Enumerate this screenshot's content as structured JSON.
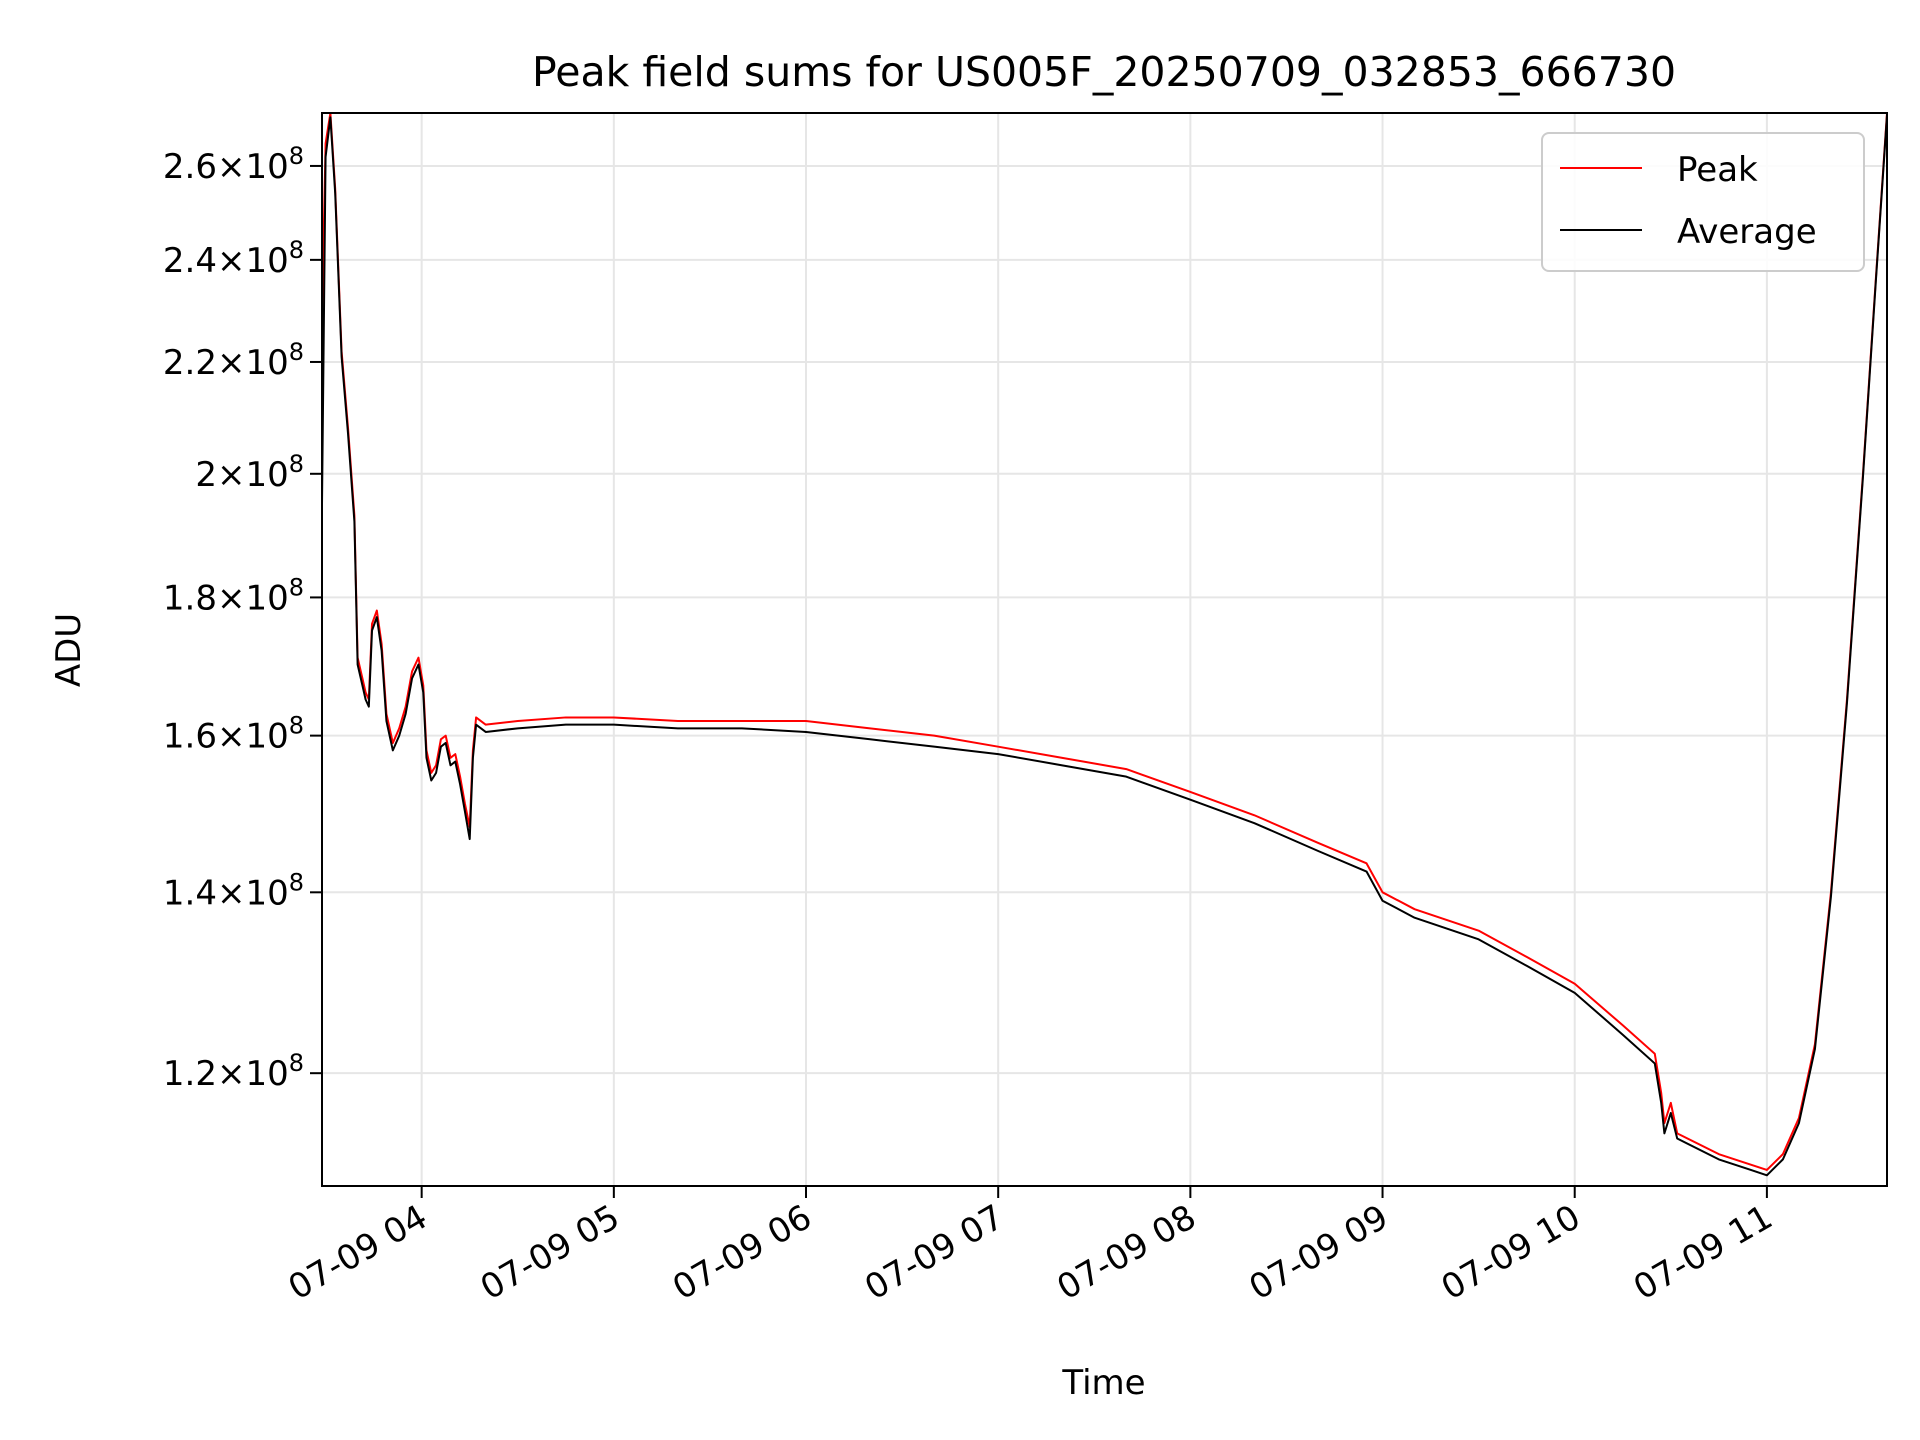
{
  "chart_data": {
    "type": "line",
    "title": "Peak field sums for US005F_20250709_032853_666730",
    "xlabel": "Time",
    "ylabel": "ADU",
    "yscale": "log",
    "ylim": [
      109000000,
      272000000
    ],
    "xlim": [
      "07-09 03:28:53",
      "07-09 11:37:30"
    ],
    "grid": true,
    "legend_position": "top-right",
    "x_ticks": [
      {
        "value": "07-09 04:00",
        "label": "07-09 04"
      },
      {
        "value": "07-09 05:00",
        "label": "07-09 05"
      },
      {
        "value": "07-09 06:00",
        "label": "07-09 06"
      },
      {
        "value": "07-09 07:00",
        "label": "07-09 07"
      },
      {
        "value": "07-09 08:00",
        "label": "07-09 08"
      },
      {
        "value": "07-09 09:00",
        "label": "07-09 09"
      },
      {
        "value": "07-09 10:00",
        "label": "07-09 10"
      },
      {
        "value": "07-09 11:00",
        "label": "07-09 11"
      }
    ],
    "y_ticks": [
      {
        "value": 120000000,
        "mantissa": "1.2",
        "exponent": "8"
      },
      {
        "value": 140000000,
        "mantissa": "1.4",
        "exponent": "8"
      },
      {
        "value": 160000000,
        "mantissa": "1.6",
        "exponent": "8"
      },
      {
        "value": 180000000,
        "mantissa": "1.8",
        "exponent": "8"
      },
      {
        "value": 200000000,
        "mantissa": "2",
        "exponent": "8"
      },
      {
        "value": 220000000,
        "mantissa": "2.2",
        "exponent": "8"
      },
      {
        "value": 240000000,
        "mantissa": "2.4",
        "exponent": "8"
      },
      {
        "value": 260000000,
        "mantissa": "2.6",
        "exponent": "8"
      }
    ],
    "series": [
      {
        "name": "Peak",
        "color": "#ff0000",
        "points": [
          [
            "07-09 03:28:53",
            228000000
          ],
          [
            "07-09 03:30:00",
            265000000
          ],
          [
            "07-09 03:31:30",
            272000000
          ],
          [
            "07-09 03:33:00",
            255000000
          ],
          [
            "07-09 03:35:00",
            222000000
          ],
          [
            "07-09 03:37:00",
            208000000
          ],
          [
            "07-09 03:39:00",
            193000000
          ],
          [
            "07-09 03:40:00",
            171000000
          ],
          [
            "07-09 03:41:30",
            168000000
          ],
          [
            "07-09 03:42:30",
            166000000
          ],
          [
            "07-09 03:43:30",
            165000000
          ],
          [
            "07-09 03:44:30",
            176000000
          ],
          [
            "07-09 03:46:00",
            178000000
          ],
          [
            "07-09 03:47:30",
            173000000
          ],
          [
            "07-09 03:49:00",
            163000000
          ],
          [
            "07-09 03:51:00",
            159000000
          ],
          [
            "07-09 03:53:00",
            161000000
          ],
          [
            "07-09 03:55:00",
            164000000
          ],
          [
            "07-09 03:57:00",
            169000000
          ],
          [
            "07-09 03:59:00",
            171000000
          ],
          [
            "07-09 04:00:30",
            167000000
          ],
          [
            "07-09 04:01:30",
            158000000
          ],
          [
            "07-09 04:03:00",
            155000000
          ],
          [
            "07-09 04:04:30",
            156000000
          ],
          [
            "07-09 04:06:00",
            159500000
          ],
          [
            "07-09 04:07:30",
            160000000
          ],
          [
            "07-09 04:09:00",
            157000000
          ],
          [
            "07-09 04:10:30",
            157500000
          ],
          [
            "07-09 04:12:00",
            154500000
          ],
          [
            "07-09 04:13:30",
            151000000
          ],
          [
            "07-09 04:15:00",
            148000000
          ],
          [
            "07-09 04:16:00",
            158000000
          ],
          [
            "07-09 04:17:00",
            162500000
          ],
          [
            "07-09 04:20:00",
            161500000
          ],
          [
            "07-09 04:30:00",
            162000000
          ],
          [
            "07-09 04:45:00",
            162500000
          ],
          [
            "07-09 05:00:00",
            162500000
          ],
          [
            "07-09 05:20:00",
            162000000
          ],
          [
            "07-09 05:40:00",
            162000000
          ],
          [
            "07-09 06:00:00",
            162000000
          ],
          [
            "07-09 06:20:00",
            161000000
          ],
          [
            "07-09 06:40:00",
            160000000
          ],
          [
            "07-09 07:00:00",
            158500000
          ],
          [
            "07-09 07:20:00",
            157000000
          ],
          [
            "07-09 07:40:00",
            155500000
          ],
          [
            "07-09 08:00:00",
            152500000
          ],
          [
            "07-09 08:20:00",
            149500000
          ],
          [
            "07-09 08:40:00",
            146000000
          ],
          [
            "07-09 08:55:00",
            143500000
          ],
          [
            "07-09 09:00:00",
            140000000
          ],
          [
            "07-09 09:10:00",
            138000000
          ],
          [
            "07-09 09:30:00",
            135500000
          ],
          [
            "07-09 09:45:00",
            132500000
          ],
          [
            "07-09 10:00:00",
            129500000
          ],
          [
            "07-09 10:15:00",
            125000000
          ],
          [
            "07-09 10:25:00",
            122000000
          ],
          [
            "07-09 10:27:00",
            118000000
          ],
          [
            "07-09 10:28:00",
            115000000
          ],
          [
            "07-09 10:30:00",
            117000000
          ],
          [
            "07-09 10:32:00",
            114000000
          ],
          [
            "07-09 10:45:00",
            112000000
          ],
          [
            "07-09 10:55:00",
            111000000
          ],
          [
            "07-09 11:00:00",
            110500000
          ],
          [
            "07-09 11:05:00",
            112000000
          ],
          [
            "07-09 11:10:00",
            115500000
          ],
          [
            "07-09 11:15:00",
            123000000
          ],
          [
            "07-09 11:20:00",
            140000000
          ],
          [
            "07-09 11:25:00",
            165000000
          ],
          [
            "07-09 11:30:00",
            200000000
          ],
          [
            "07-09 11:34:00",
            236000000
          ],
          [
            "07-09 11:37:30",
            272000000
          ]
        ]
      },
      {
        "name": "Average",
        "color": "#000000",
        "points": [
          [
            "07-09 03:28:53",
            195000000
          ],
          [
            "07-09 03:30:00",
            262000000
          ],
          [
            "07-09 03:31:30",
            271000000
          ],
          [
            "07-09 03:33:00",
            254000000
          ],
          [
            "07-09 03:35:00",
            221000000
          ],
          [
            "07-09 03:37:00",
            207000000
          ],
          [
            "07-09 03:39:00",
            192000000
          ],
          [
            "07-09 03:40:00",
            170000000
          ],
          [
            "07-09 03:41:30",
            167000000
          ],
          [
            "07-09 03:42:30",
            165000000
          ],
          [
            "07-09 03:43:30",
            164000000
          ],
          [
            "07-09 03:44:30",
            175000000
          ],
          [
            "07-09 03:46:00",
            177000000
          ],
          [
            "07-09 03:47:30",
            172000000
          ],
          [
            "07-09 03:49:00",
            162000000
          ],
          [
            "07-09 03:51:00",
            158000000
          ],
          [
            "07-09 03:53:00",
            160000000
          ],
          [
            "07-09 03:55:00",
            163000000
          ],
          [
            "07-09 03:57:00",
            168000000
          ],
          [
            "07-09 03:59:00",
            170000000
          ],
          [
            "07-09 04:00:30",
            166000000
          ],
          [
            "07-09 04:01:30",
            157000000
          ],
          [
            "07-09 04:03:00",
            154000000
          ],
          [
            "07-09 04:04:30",
            155000000
          ],
          [
            "07-09 04:06:00",
            158500000
          ],
          [
            "07-09 04:07:30",
            159000000
          ],
          [
            "07-09 04:09:00",
            156000000
          ],
          [
            "07-09 04:10:30",
            156500000
          ],
          [
            "07-09 04:12:00",
            153500000
          ],
          [
            "07-09 04:13:30",
            150000000
          ],
          [
            "07-09 04:15:00",
            146500000
          ],
          [
            "07-09 04:16:00",
            157000000
          ],
          [
            "07-09 04:17:00",
            161500000
          ],
          [
            "07-09 04:20:00",
            160500000
          ],
          [
            "07-09 04:30:00",
            161000000
          ],
          [
            "07-09 04:45:00",
            161500000
          ],
          [
            "07-09 05:00:00",
            161500000
          ],
          [
            "07-09 05:20:00",
            161000000
          ],
          [
            "07-09 05:40:00",
            161000000
          ],
          [
            "07-09 06:00:00",
            160500000
          ],
          [
            "07-09 06:20:00",
            159500000
          ],
          [
            "07-09 06:40:00",
            158500000
          ],
          [
            "07-09 07:00:00",
            157500000
          ],
          [
            "07-09 07:20:00",
            156000000
          ],
          [
            "07-09 07:40:00",
            154500000
          ],
          [
            "07-09 08:00:00",
            151500000
          ],
          [
            "07-09 08:20:00",
            148500000
          ],
          [
            "07-09 08:40:00",
            145000000
          ],
          [
            "07-09 08:55:00",
            142500000
          ],
          [
            "07-09 09:00:00",
            139000000
          ],
          [
            "07-09 09:10:00",
            137000000
          ],
          [
            "07-09 09:30:00",
            134500000
          ],
          [
            "07-09 09:45:00",
            131500000
          ],
          [
            "07-09 10:00:00",
            128500000
          ],
          [
            "07-09 10:15:00",
            124000000
          ],
          [
            "07-09 10:25:00",
            121000000
          ],
          [
            "07-09 10:27:00",
            117000000
          ],
          [
            "07-09 10:28:00",
            114000000
          ],
          [
            "07-09 10:30:00",
            116000000
          ],
          [
            "07-09 10:32:00",
            113500000
          ],
          [
            "07-09 10:45:00",
            111500000
          ],
          [
            "07-09 10:55:00",
            110500000
          ],
          [
            "07-09 11:00:00",
            110000000
          ],
          [
            "07-09 11:05:00",
            111500000
          ],
          [
            "07-09 11:10:00",
            115000000
          ],
          [
            "07-09 11:15:00",
            122500000
          ],
          [
            "07-09 11:20:00",
            139500000
          ],
          [
            "07-09 11:25:00",
            164500000
          ],
          [
            "07-09 11:30:00",
            199500000
          ],
          [
            "07-09 11:34:00",
            235500000
          ],
          [
            "07-09 11:37:30",
            271500000
          ]
        ]
      }
    ]
  }
}
